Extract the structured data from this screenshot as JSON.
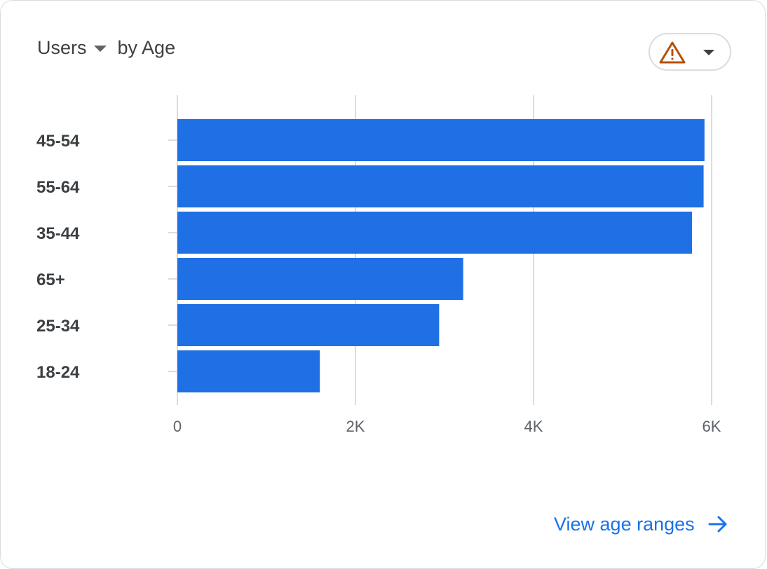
{
  "card": {
    "metric_label": "Users",
    "dimension_label": "by Age",
    "warning_icon": "warning-triangle-icon",
    "link_label": "View age ranges",
    "link_icon": "arrow-right-icon"
  },
  "colors": {
    "bar": "#1f6fe5",
    "warning": "#b4500b",
    "link": "#1a73e8"
  },
  "chart_data": {
    "type": "bar",
    "orientation": "horizontal",
    "categories": [
      "45-54",
      "55-64",
      "35-44",
      "65+",
      "25-34",
      "18-24"
    ],
    "values": [
      5920,
      5910,
      5780,
      3210,
      2940,
      1600
    ],
    "xlim": [
      0,
      6000
    ],
    "xticks": [
      0,
      2000,
      4000,
      6000
    ],
    "xtick_labels": [
      "0",
      "2K",
      "4K",
      "6K"
    ],
    "grid": "vertical"
  }
}
